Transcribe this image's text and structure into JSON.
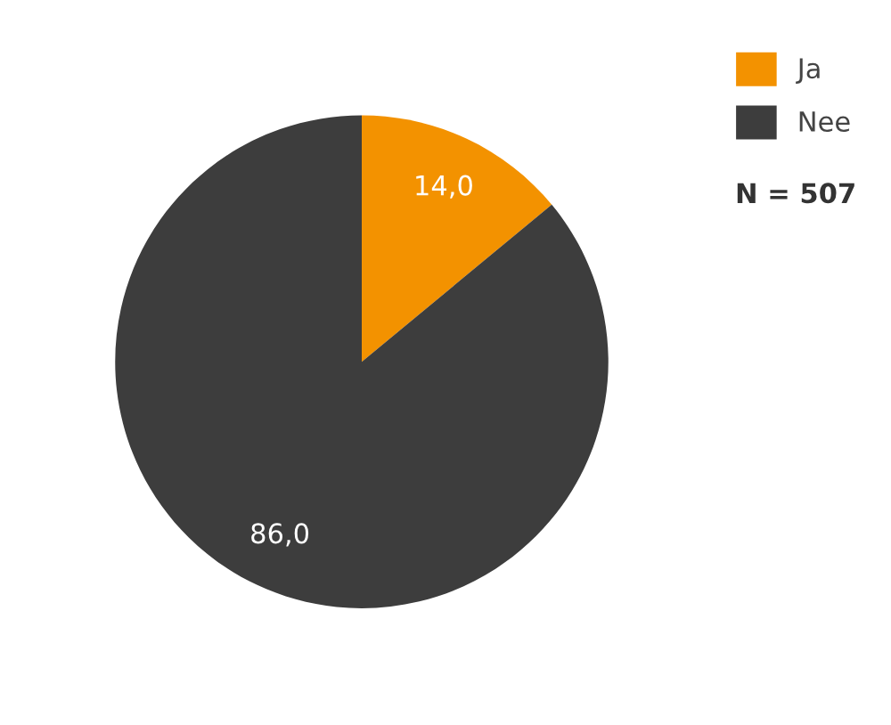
{
  "chart_data": {
    "type": "pie",
    "categories": [
      "Ja",
      "Nee"
    ],
    "values": [
      14.0,
      86.0
    ],
    "value_labels": [
      "14,0",
      "86,0"
    ],
    "colors": [
      "#f39200",
      "#3d3d3d"
    ],
    "legend": "right",
    "annotations": [
      "N = 507"
    ]
  }
}
